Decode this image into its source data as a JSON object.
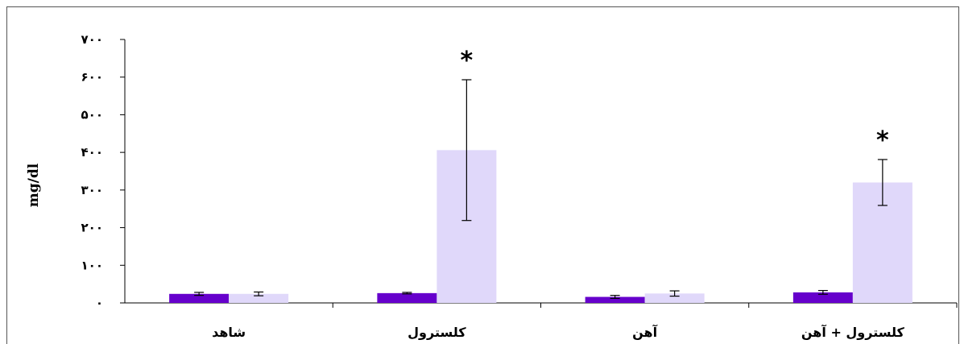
{
  "chart_data": {
    "type": "bar",
    "ylabel": "mg/dl",
    "ylim": [
      0,
      700
    ],
    "yticks": [
      0,
      100,
      200,
      300,
      400,
      500,
      600,
      700
    ],
    "ytick_labels": [
      "٠",
      "١٠٠",
      "٢٠٠",
      "٣٠٠",
      "۴٠٠",
      "۵٠٠",
      "۶٠٠",
      "٧٠٠"
    ],
    "categories": [
      "شاهد",
      "کلسترول",
      "آهن",
      "کلسترول + آهن"
    ],
    "series": [
      {
        "color": "#6600cc",
        "values": [
          24,
          26,
          16,
          28
        ],
        "errors": [
          4,
          2,
          4,
          5
        ]
      },
      {
        "color": "#e0d8fa",
        "values": [
          24,
          406,
          25,
          320
        ],
        "errors": [
          5,
          187,
          7,
          61
        ]
      }
    ],
    "significance": [
      {
        "category_index": 1,
        "series_index": 1,
        "label": "*"
      },
      {
        "category_index": 3,
        "series_index": 1,
        "label": "*"
      }
    ],
    "grid": false,
    "legend": "none"
  }
}
